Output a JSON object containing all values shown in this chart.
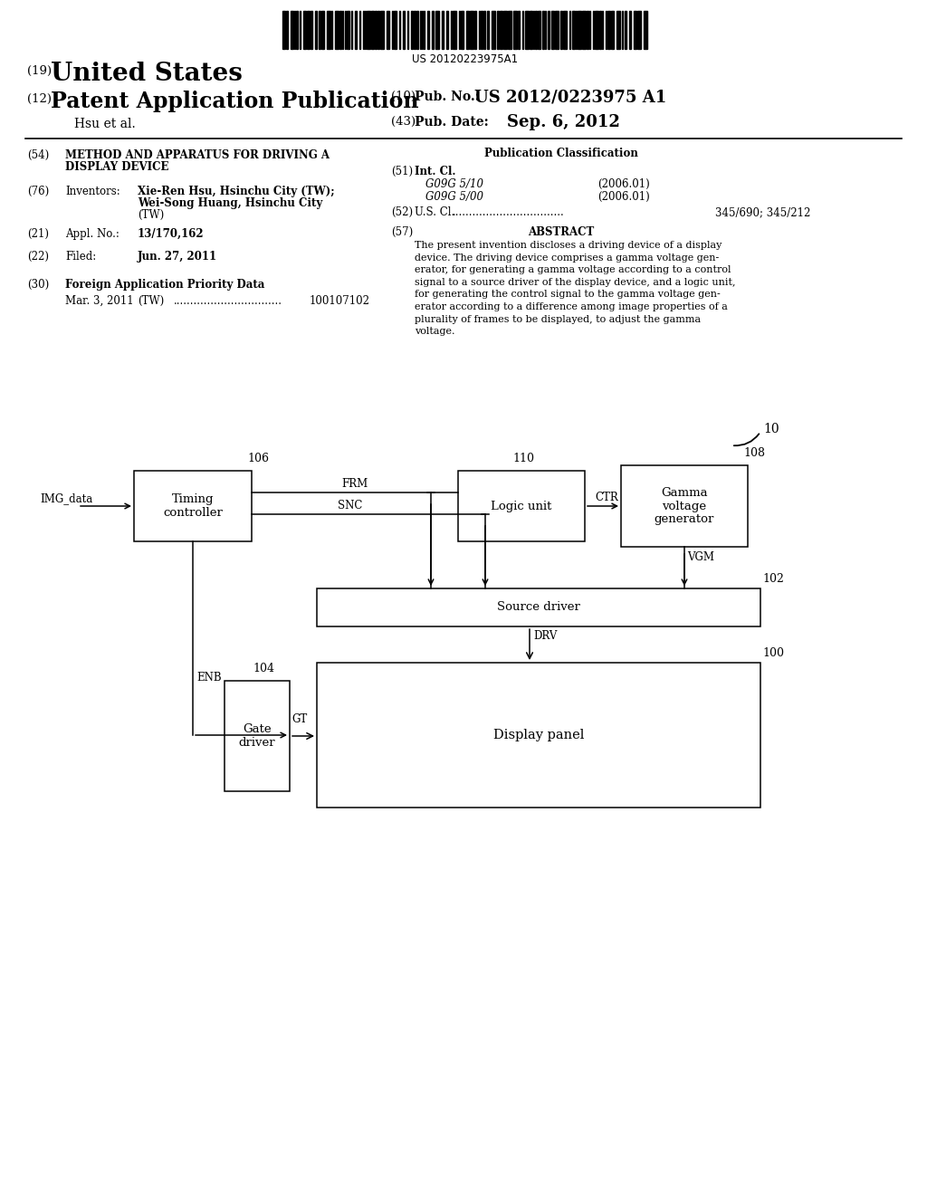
{
  "bg_color": "#ffffff",
  "barcode_text": "US 20120223975A1",
  "header": {
    "number_19": "(19)",
    "us_text": "United States",
    "number_12": "(12)",
    "pub_text": "Patent Application Publication",
    "authors": "Hsu et al.",
    "number_10": "(10)",
    "pub_no_label": "Pub. No.:",
    "pub_no": "US 2012/0223975 A1",
    "number_43": "(43)",
    "pub_date_label": "Pub. Date:",
    "pub_date": "Sep. 6, 2012"
  },
  "left_col": {
    "num54": "(54)",
    "title_line1": "METHOD AND APPARATUS FOR DRIVING A",
    "title_line2": "DISPLAY DEVICE",
    "num76": "(76)",
    "inventors_label": "Inventors:",
    "inventor1": "Xie-Ren Hsu, Hsinchu City (TW);",
    "inventor2": "Wei-Song Huang, Hsinchu City",
    "inventor3": "(TW)",
    "num21": "(21)",
    "appl_label": "Appl. No.:",
    "appl_no": "13/170,162",
    "num22": "(22)",
    "filed_label": "Filed:",
    "filed_date": "Jun. 27, 2011",
    "num30": "(30)",
    "foreign_label": "Foreign Application Priority Data",
    "foreign_date": "Mar. 3, 2011",
    "foreign_country": "(TW)",
    "foreign_dots": "................................",
    "foreign_num": "100107102"
  },
  "right_col": {
    "pub_class_title": "Publication Classification",
    "num51": "(51)",
    "intcl_label": "Int. Cl.",
    "class1": "G09G 5/10",
    "class1_year": "(2006.01)",
    "class2": "G09G 5/00",
    "class2_year": "(2006.01)",
    "num52": "(52)",
    "uscl_label": "U.S. Cl.",
    "uscl_dots": ".................................",
    "uscl_val": "345/690; 345/212",
    "num57": "(57)",
    "abstract_title": "ABSTRACT",
    "abstract_text": "The present invention discloses a driving device of a display\ndevice. The driving device comprises a gamma voltage gen-\nerator, for generating a gamma voltage according to a control\nsignal to a source driver of the display device, and a logic unit,\nfor generating the control signal to the gamma voltage gen-\nerator according to a difference among image properties of a\nplurality of frames to be displayed, to adjust the gamma\nvoltage."
  },
  "diagram": {
    "label10": "10",
    "label106": "106",
    "label110": "110",
    "label108": "108",
    "label102": "102",
    "label104": "104",
    "label100": "100",
    "block_timing": "Timing\ncontroller",
    "block_logic": "Logic unit",
    "block_gamma": "Gamma\nvoltage\ngenerator",
    "block_source": "Source driver",
    "block_gate": "Gate\ndriver",
    "block_display": "Display panel",
    "label_img": "IMG_data",
    "label_frm": "FRM",
    "label_snc": "SNC",
    "label_ctr": "CTR",
    "label_vgm": "VGM",
    "label_enb": "ENB",
    "label_drv": "DRV",
    "label_gt": "GT"
  }
}
